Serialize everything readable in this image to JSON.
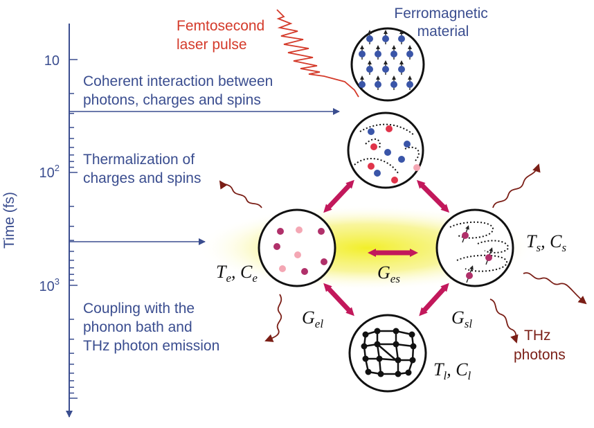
{
  "axis": {
    "label": "Time (fs)",
    "ticks": [
      {
        "base": "10",
        "exp": ""
      },
      {
        "base": "10",
        "exp": "2"
      },
      {
        "base": "10",
        "exp": "3"
      }
    ]
  },
  "phases": {
    "coherent": [
      "Coherent interaction between",
      "photons, charges and spins"
    ],
    "thermalization": [
      "Thermalization of",
      "charges and spins"
    ],
    "coupling": [
      "Coupling with the",
      "phonon bath and",
      "THz photon emission"
    ]
  },
  "laser": [
    "Femtosecond",
    "laser pulse"
  ],
  "material": [
    "Ferromagnetic",
    "material"
  ],
  "symbols": {
    "electron": {
      "T": "T",
      "Tsub": "e",
      "C": "C",
      "Csub": "e"
    },
    "spin": {
      "T": "T",
      "Tsub": "s",
      "C": "C",
      "Csub": "s"
    },
    "lattice": {
      "T": "T",
      "Tsub": "l",
      "C": "C",
      "Csub": "l"
    },
    "Ges": {
      "G": "G",
      "sub": "es"
    },
    "Gel": {
      "G": "G",
      "sub": "el"
    },
    "Gsl": {
      "G": "G",
      "sub": "sl"
    }
  },
  "thz": [
    "THz",
    "photons"
  ],
  "colors": {
    "axis": "#3a4d8f",
    "laser": "#d43a2a",
    "arrow": "#c2185b",
    "wave": "#7a1e16",
    "glow": "#f2ef2a"
  }
}
